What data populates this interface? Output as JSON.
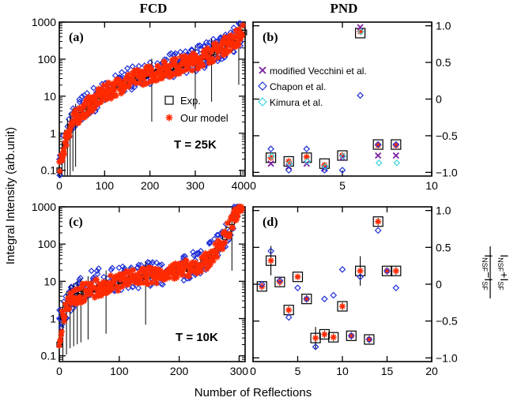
{
  "figure": {
    "col_titles": [
      "FCD",
      "PND"
    ],
    "ylabel_left": "Integral Intensity (arb.unit)",
    "xlabel": "Number of Reflections",
    "ylabel_right": {
      "num_a": "I",
      "num_a_sub": "NSF",
      "num_op": "−",
      "num_b": "I",
      "num_b_sub": "SF",
      "den_a": "I",
      "den_a_sub": "NSF",
      "den_op": "+",
      "den_b": "I",
      "den_b_sub": "SF"
    }
  },
  "colors": {
    "exp": "#000000",
    "model": "#ff2a00",
    "vecchini": "#7a1fa0",
    "chapon": "#1f2fd8",
    "kimura": "#3fd6df"
  },
  "chart_data": [
    {
      "panel": "(a)",
      "type": "scatter",
      "title": "FCD",
      "annotation": "T = 25K",
      "xlim": [
        0,
        410
      ],
      "ylim": [
        0.07,
        1000
      ],
      "yscale": "log",
      "xticks": [
        0,
        100,
        200,
        300,
        400
      ],
      "yticks": [
        0.1,
        1,
        10,
        100,
        1000
      ],
      "ytick_labels": [
        "0.1",
        "1",
        "10",
        "100",
        "1000"
      ],
      "legend": {
        "position": "center-right",
        "entries": [
          "Exp.",
          "Our model"
        ]
      },
      "series": [
        {
          "name": "Exp.",
          "marker": "open-square-errorbar",
          "curve": [
            [
              0,
              0.1
            ],
            [
              5,
              0.2
            ],
            [
              10,
              0.4
            ],
            [
              20,
              1.2
            ],
            [
              40,
              3
            ],
            [
              60,
              5
            ],
            [
              80,
              8
            ],
            [
              100,
              12
            ],
            [
              150,
              25
            ],
            [
              200,
              40
            ],
            [
              250,
              60
            ],
            [
              300,
              90
            ],
            [
              340,
              150
            ],
            [
              370,
              250
            ],
            [
              395,
              400
            ],
            [
              410,
              550
            ]
          ],
          "n": 410
        },
        {
          "name": "Our model",
          "marker": "asterisk",
          "curve": [
            [
              0,
              0.1
            ],
            [
              5,
              0.2
            ],
            [
              10,
              0.4
            ],
            [
              20,
              1.2
            ],
            [
              40,
              3
            ],
            [
              60,
              5
            ],
            [
              80,
              8
            ],
            [
              100,
              12
            ],
            [
              150,
              25
            ],
            [
              200,
              40
            ],
            [
              250,
              60
            ],
            [
              300,
              90
            ],
            [
              340,
              150
            ],
            [
              370,
              250
            ],
            [
              395,
              400
            ],
            [
              410,
              550
            ]
          ],
          "n": 360
        },
        {
          "marker": "open-diamond",
          "curve": [
            [
              0,
              0.1
            ],
            [
              5,
              0.3
            ],
            [
              15,
              1
            ],
            [
              30,
              3
            ],
            [
              60,
              6
            ],
            [
              100,
              12
            ],
            [
              150,
              30
            ],
            [
              200,
              45
            ],
            [
              250,
              70
            ],
            [
              300,
              100
            ],
            [
              340,
              160
            ],
            [
              370,
              250
            ],
            [
              395,
              400
            ],
            [
              410,
              600
            ]
          ],
          "n": 260
        }
      ]
    },
    {
      "panel": "(b)",
      "type": "scatter",
      "title": "PND",
      "xlim": [
        0,
        10
      ],
      "ylim": [
        -1.05,
        1.05
      ],
      "xticks": [
        0,
        5,
        10
      ],
      "yticks": [
        -1,
        -0.5,
        0,
        0.5,
        1
      ],
      "ytick_labels": [
        "−1.0",
        "−0.5",
        "0",
        "0.5",
        "1.0"
      ],
      "legend": {
        "position": "upper-left",
        "entries": [
          "modified Vecchini et al.",
          "Chapon et al.",
          "Kimura et al."
        ]
      },
      "series": [
        {
          "name": "Exp.",
          "x": [
            1,
            2,
            3,
            4,
            5,
            6,
            7,
            8
          ],
          "y": [
            -0.8,
            -0.85,
            -0.8,
            -0.88,
            -0.77,
            0.9,
            -0.62,
            -0.62
          ]
        },
        {
          "name": "Our model",
          "x": [
            1,
            2,
            3,
            4,
            5,
            6,
            7,
            8
          ],
          "y": [
            -0.8,
            -0.85,
            -0.79,
            -0.9,
            -0.77,
            0.92,
            -0.63,
            -0.63
          ]
        },
        {
          "name": "modified Vecchini et al.",
          "x": [
            1,
            2,
            3,
            4,
            5,
            6,
            7,
            8
          ],
          "y": [
            -0.88,
            -0.92,
            -0.88,
            -0.95,
            -0.8,
            0.98,
            -0.77,
            -0.77
          ]
        },
        {
          "name": "Chapon et al.",
          "x": [
            1,
            2,
            3,
            4,
            5,
            6,
            7,
            8
          ],
          "y": [
            -0.68,
            -0.97,
            -0.68,
            -0.97,
            -0.97,
            0.05,
            -0.62,
            -0.62
          ]
        },
        {
          "name": "Kimura et al.",
          "x": [
            1,
            2,
            3,
            4,
            5,
            6,
            7,
            8
          ],
          "y": [
            -0.78,
            -0.88,
            -0.85,
            -0.92,
            -0.78,
            0.92,
            -0.87,
            -0.87
          ]
        }
      ]
    },
    {
      "panel": "(c)",
      "type": "scatter",
      "annotation": "T = 10K",
      "xlim": [
        0,
        310
      ],
      "ylim": [
        0.07,
        1000
      ],
      "yscale": "log",
      "xticks": [
        0,
        100,
        200,
        300
      ],
      "yticks": [
        0.1,
        1,
        10,
        100,
        1000
      ],
      "ytick_labels": [
        "0.1",
        "1",
        "10",
        "100",
        "1000"
      ],
      "series": [
        {
          "name": "Exp.",
          "marker": "open-square-errorbar",
          "curve": [
            [
              0,
              0.2
            ],
            [
              5,
              1
            ],
            [
              15,
              3
            ],
            [
              40,
              5
            ],
            [
              80,
              8
            ],
            [
              120,
              12
            ],
            [
              160,
              15
            ],
            [
              200,
              20
            ],
            [
              230,
              25
            ],
            [
              250,
              40
            ],
            [
              270,
              100
            ],
            [
              285,
              300
            ],
            [
              295,
              700
            ],
            [
              300,
              1000
            ]
          ],
          "n": 300
        },
        {
          "name": "Our model",
          "marker": "asterisk",
          "curve": [
            [
              0,
              0.2
            ],
            [
              5,
              1
            ],
            [
              15,
              3
            ],
            [
              40,
              5
            ],
            [
              80,
              8
            ],
            [
              120,
              12
            ],
            [
              160,
              15
            ],
            [
              200,
              20
            ],
            [
              230,
              25
            ],
            [
              250,
              40
            ],
            [
              270,
              100
            ],
            [
              285,
              300
            ],
            [
              295,
              700
            ],
            [
              300,
              1000
            ]
          ],
          "n": 300
        },
        {
          "marker": "open-diamond",
          "curve": [
            [
              0,
              1
            ],
            [
              10,
              2
            ],
            [
              30,
              6
            ],
            [
              60,
              10
            ],
            [
              100,
              12
            ],
            [
              150,
              15
            ],
            [
              200,
              20
            ],
            [
              240,
              35
            ],
            [
              270,
              100
            ],
            [
              290,
              500
            ],
            [
              300,
              1000
            ]
          ],
          "n": 230
        }
      ]
    },
    {
      "panel": "(d)",
      "type": "scatter",
      "xlim": [
        0,
        20
      ],
      "ylim": [
        -1.05,
        1.05
      ],
      "xticks": [
        0,
        5,
        10,
        15,
        20
      ],
      "yticks": [
        -1,
        -0.5,
        0,
        0.5,
        1
      ],
      "ytick_labels": [
        "−1.0",
        "−0.5",
        "0",
        "0.5",
        "1.0"
      ],
      "series": [
        {
          "name": "Exp.",
          "x": [
            1,
            2,
            3,
            4,
            5,
            6,
            7,
            8,
            9,
            10,
            11,
            12,
            13,
            14,
            15,
            16
          ],
          "y": [
            -0.03,
            0.32,
            0.03,
            -0.35,
            0.1,
            -0.2,
            -0.73,
            -0.68,
            -0.72,
            -0.3,
            -0.7,
            0.18,
            -0.75,
            0.85,
            0.18,
            0.18
          ],
          "yerr": [
            0.05,
            0.2,
            0.05,
            0.05,
            0.03,
            0.05,
            0.15,
            0.05,
            0.05,
            0.05,
            0.05,
            0.2,
            0.05,
            0.05,
            0.05,
            0.05
          ]
        },
        {
          "name": "Our model",
          "x": [
            1,
            2,
            3,
            4,
            5,
            6,
            7,
            8,
            9,
            10,
            11,
            12,
            13,
            14,
            15,
            16
          ],
          "y": [
            -0.03,
            0.32,
            0.03,
            -0.35,
            0.1,
            -0.2,
            -0.73,
            -0.68,
            -0.72,
            -0.3,
            -0.7,
            0.18,
            -0.75,
            0.85,
            0.18,
            0.18
          ]
        },
        {
          "name": "Chapon et al.",
          "x": [
            1,
            2,
            3,
            4,
            5,
            6,
            7,
            8,
            9,
            10,
            11,
            12,
            13,
            14,
            15,
            16
          ],
          "y": [
            0,
            0.45,
            0.05,
            -0.45,
            -0.05,
            -0.2,
            -0.85,
            -0.2,
            -0.15,
            0.2,
            -0.7,
            0.1,
            -0.75,
            0.73,
            0.18,
            -0.05
          ]
        }
      ]
    }
  ]
}
